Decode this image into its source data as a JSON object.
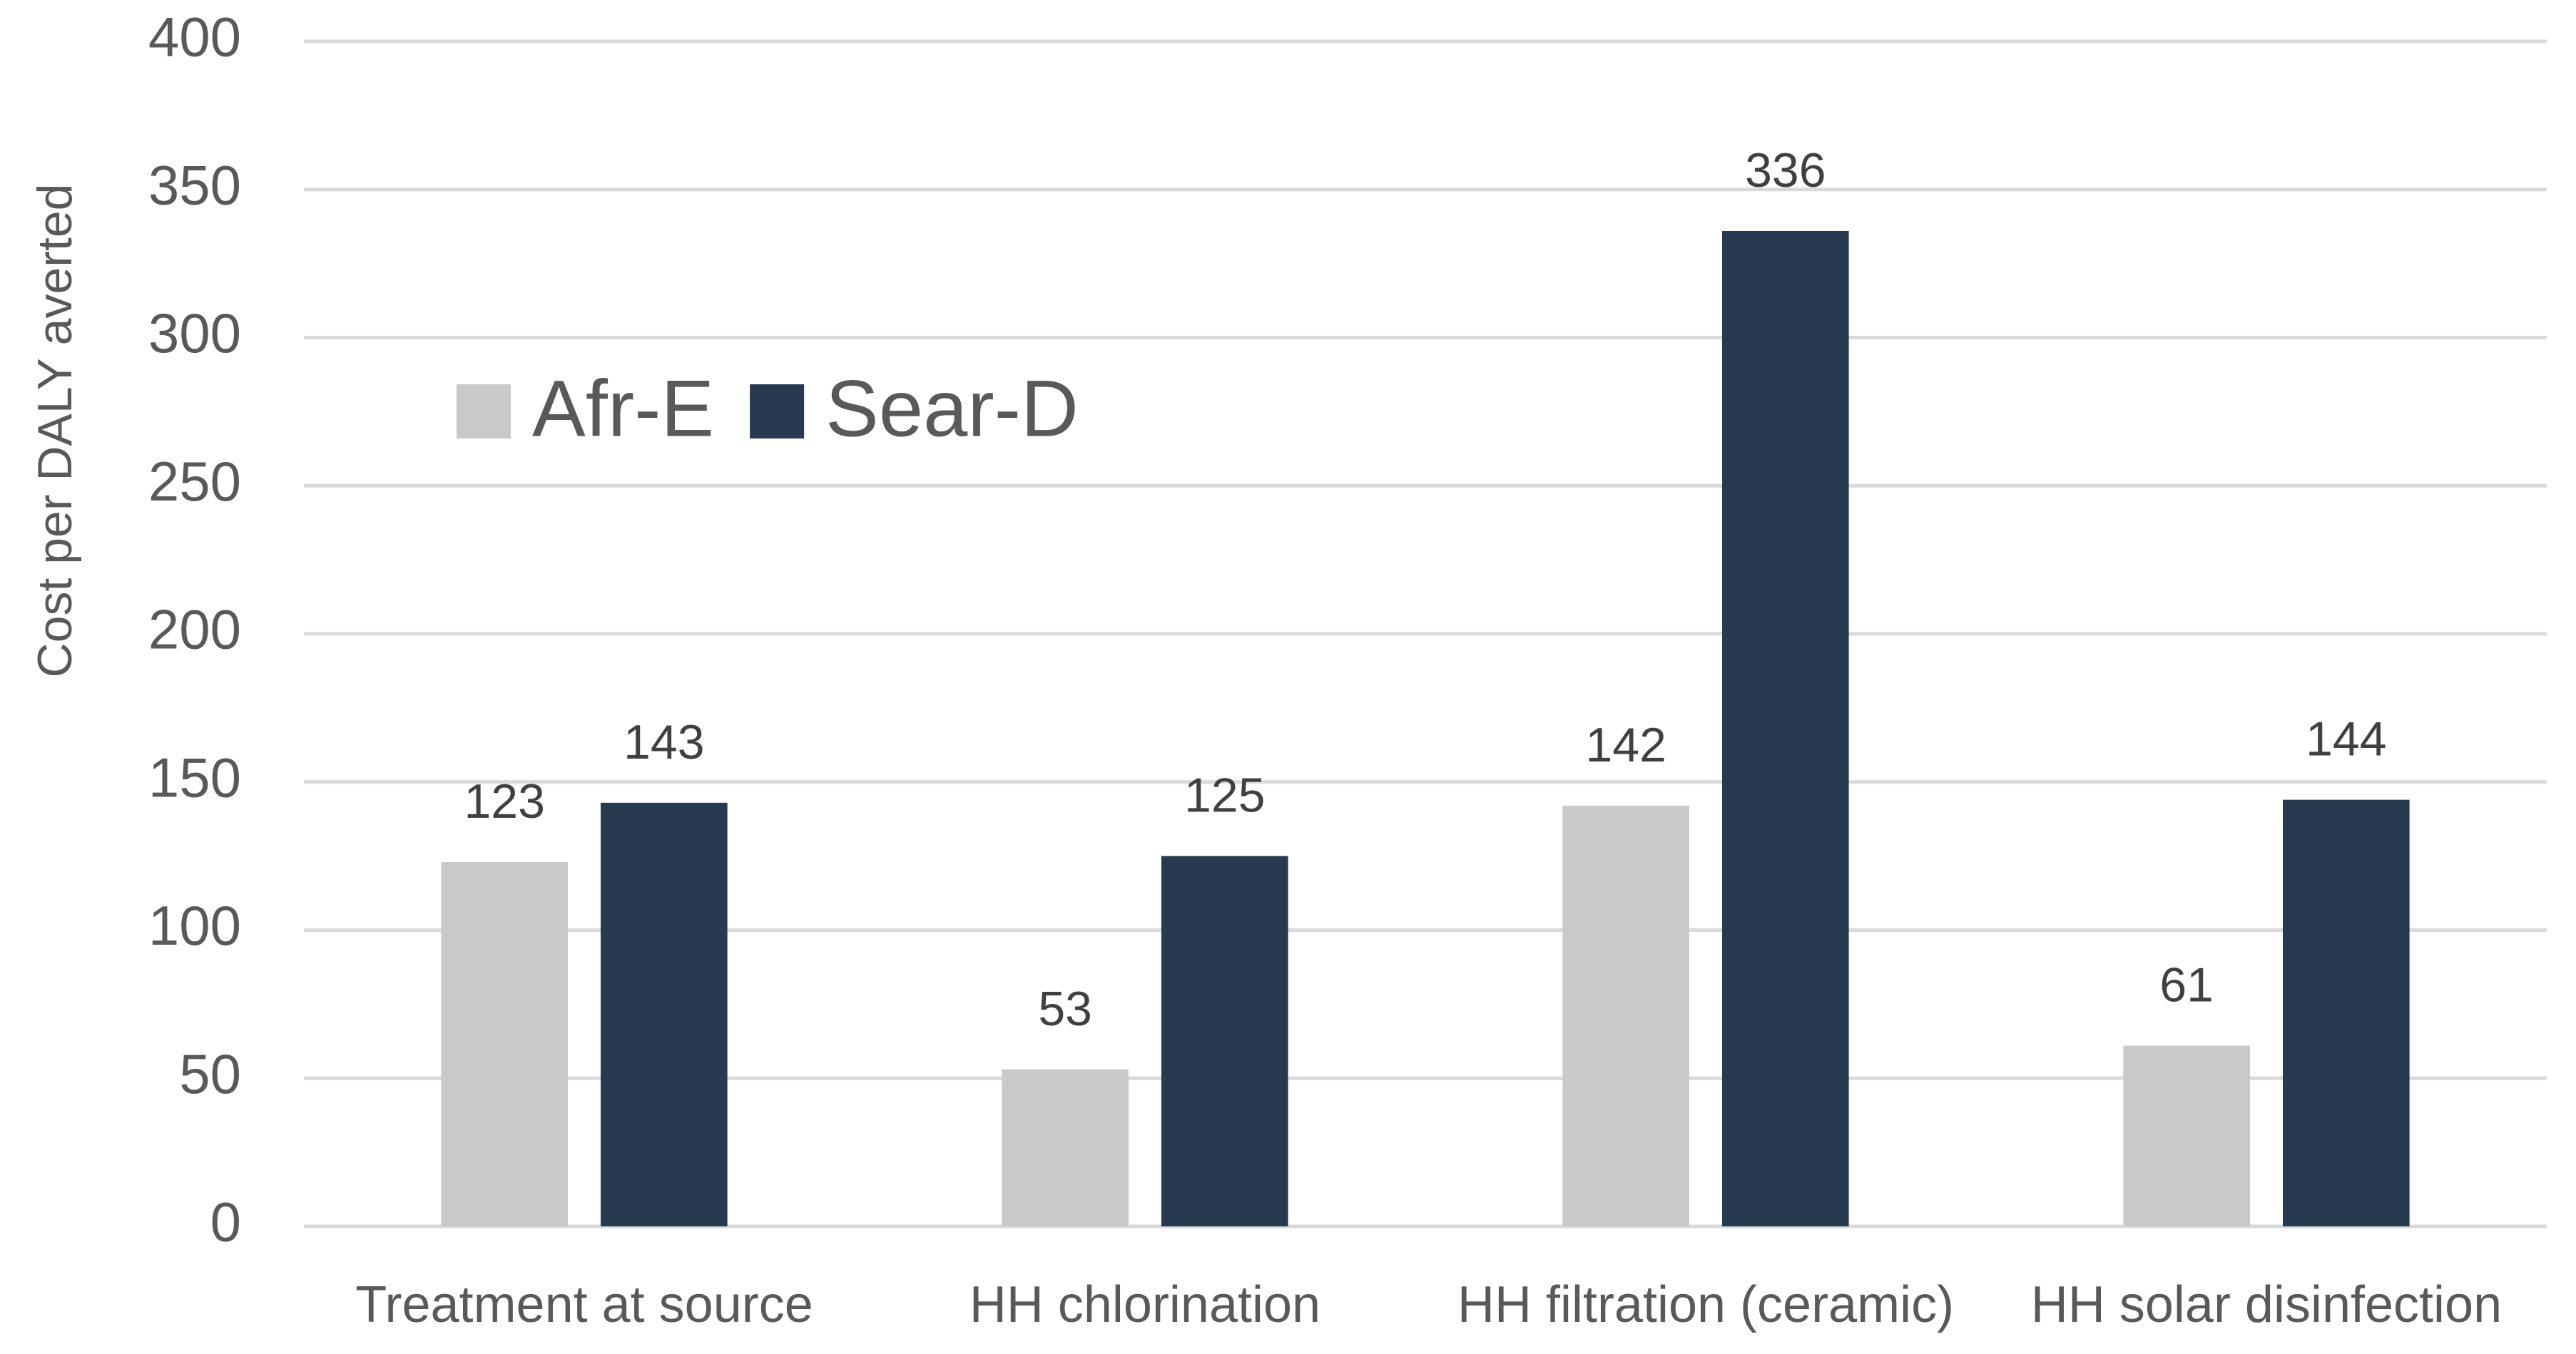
{
  "chart_data": {
    "type": "bar",
    "y_label": "Cost per DALY averted",
    "categories": [
      "Treatment at source",
      "HH chlorination",
      "HH filtration (ceramic)",
      "HH solar disinfection"
    ],
    "series": [
      {
        "name": "Afr-E",
        "color": "#c9c9c9",
        "values": [
          123,
          53,
          142,
          61
        ]
      },
      {
        "name": "Sear-D",
        "color": "#283a4f",
        "values": [
          143,
          125,
          336,
          144
        ]
      }
    ],
    "ylim": [
      0,
      400
    ],
    "yticks": [
      0,
      50,
      100,
      150,
      200,
      250,
      300,
      350,
      400
    ],
    "grid": true,
    "legend": "top-left"
  }
}
